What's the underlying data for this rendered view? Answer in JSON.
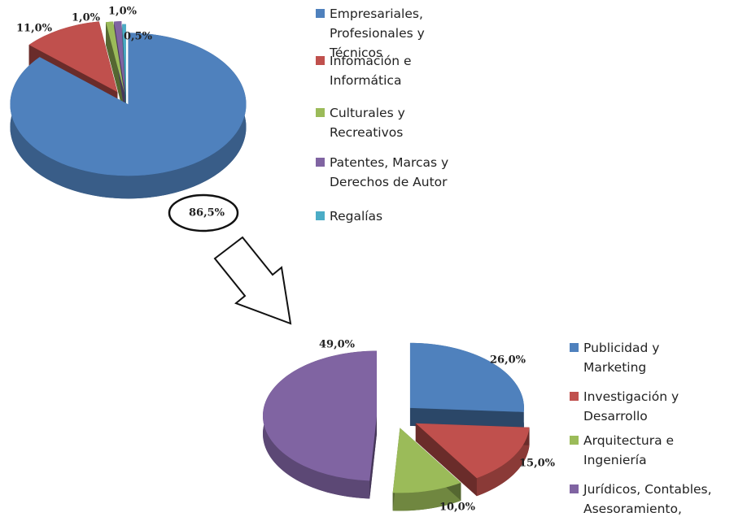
{
  "chart_data": [
    {
      "type": "pie",
      "categories": [
        "Empresariales, Profesionales y Técnicos",
        "Infomación e Informática",
        "Culturales y Recreativos",
        "Patentes, Marcas y Derechos de Autor",
        "Regalías"
      ],
      "values": [
        86.5,
        11.0,
        1.0,
        1.0,
        0.5
      ],
      "value_labels": [
        "86,5%",
        "11,0%",
        "1,0%",
        "1,0%",
        "0,5%"
      ],
      "colors": [
        "#4f81bd",
        "#c0504d",
        "#9bbb59",
        "#8064a2",
        "#4bacc6"
      ]
    },
    {
      "type": "pie",
      "categories": [
        "Publicidad y Marketing",
        "Investigación y Desarrollo",
        "Arquitectura e Ingeniería",
        "Jurídicos, Contables, Asesoramiento, Otros"
      ],
      "values": [
        26.0,
        15.0,
        10.0,
        49.0
      ],
      "value_labels": [
        "26,0%",
        "15,0%",
        "10,0%",
        "49,0%"
      ],
      "colors": [
        "#4f81bd",
        "#c0504d",
        "#9bbb59",
        "#8064a2"
      ]
    }
  ]
}
